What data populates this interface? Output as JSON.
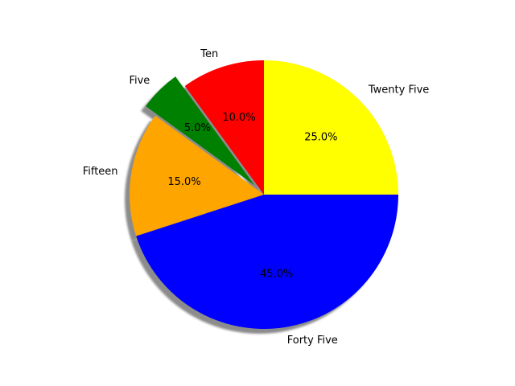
{
  "chart_data": {
    "type": "pie",
    "title": "",
    "slices": [
      {
        "label": "Ten",
        "value": 10,
        "pct_label": "10.0%",
        "color": "#ff0000",
        "exploded": false
      },
      {
        "label": "Five",
        "value": 5,
        "pct_label": "5.0%",
        "color": "#008000",
        "exploded": true
      },
      {
        "label": "Fifteen",
        "value": 15,
        "pct_label": "15.0%",
        "color": "#ffa500",
        "exploded": false
      },
      {
        "label": "Forty Five",
        "value": 45,
        "pct_label": "45.0%",
        "color": "#0000ff",
        "exploded": false
      },
      {
        "label": "Twenty Five",
        "value": 25,
        "pct_label": "25.0%",
        "color": "#ffff00",
        "exploded": false
      }
    ],
    "start_angle_deg": 90,
    "direction": "counterclockwise",
    "shadow": true,
    "legend": "none"
  }
}
